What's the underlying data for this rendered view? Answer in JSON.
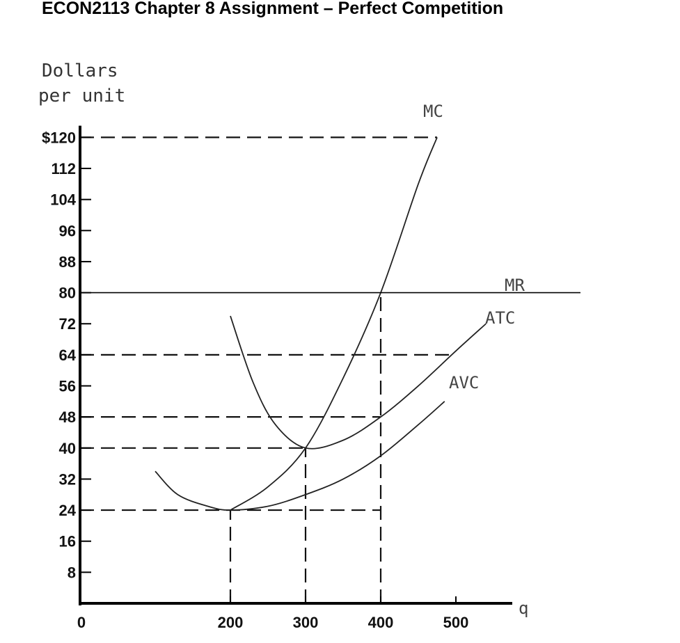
{
  "header": {
    "title": "ECON2113 Chapter 8 Assignment – Perfect Competition"
  },
  "chart_data": {
    "type": "line",
    "ylabel_lines": [
      "Dollars",
      "per unit"
    ],
    "xlabel": "q",
    "x_ticks": [
      "0",
      "200",
      "300",
      "400",
      "500"
    ],
    "y_ticks": [
      "$120",
      "112",
      "104",
      "96",
      "88",
      "80",
      "72",
      "64",
      "56",
      "48",
      "40",
      "32",
      "24",
      "16",
      "8"
    ],
    "ylim": [
      0,
      120
    ],
    "xlim": [
      0,
      580
    ],
    "series": [
      {
        "name": "MC",
        "x": [
          200,
          250,
          300,
          350,
          400,
          450,
          475
        ],
        "y": [
          24,
          30,
          40,
          58,
          80,
          108,
          120
        ]
      },
      {
        "name": "MR",
        "x": [
          0,
          550
        ],
        "y": [
          80,
          80
        ]
      },
      {
        "name": "ATC",
        "x": [
          200,
          230,
          260,
          300,
          350,
          400,
          450,
          500,
          540
        ],
        "y": [
          74,
          57,
          46,
          40,
          42,
          48,
          56,
          65,
          72
        ]
      },
      {
        "name": "AVC",
        "x": [
          100,
          130,
          170,
          200,
          250,
          300,
          350,
          400,
          450,
          485
        ],
        "y": [
          34,
          28,
          25,
          24,
          25,
          28,
          32,
          38,
          46,
          52
        ]
      }
    ],
    "guide_lines": [
      {
        "from": [
          0,
          120
        ],
        "to": [
          475,
          120
        ]
      },
      {
        "from": [
          0,
          64
        ],
        "to": [
          500,
          64
        ]
      },
      {
        "from": [
          0,
          48
        ],
        "to": [
          400,
          48
        ]
      },
      {
        "from": [
          0,
          40
        ],
        "to": [
          300,
          40
        ]
      },
      {
        "from": [
          0,
          24
        ],
        "to": [
          400,
          24
        ]
      },
      {
        "from": [
          200,
          0
        ],
        "to": [
          200,
          24
        ]
      },
      {
        "from": [
          300,
          0
        ],
        "to": [
          300,
          40
        ]
      },
      {
        "from": [
          400,
          0
        ],
        "to": [
          400,
          80
        ]
      }
    ]
  }
}
